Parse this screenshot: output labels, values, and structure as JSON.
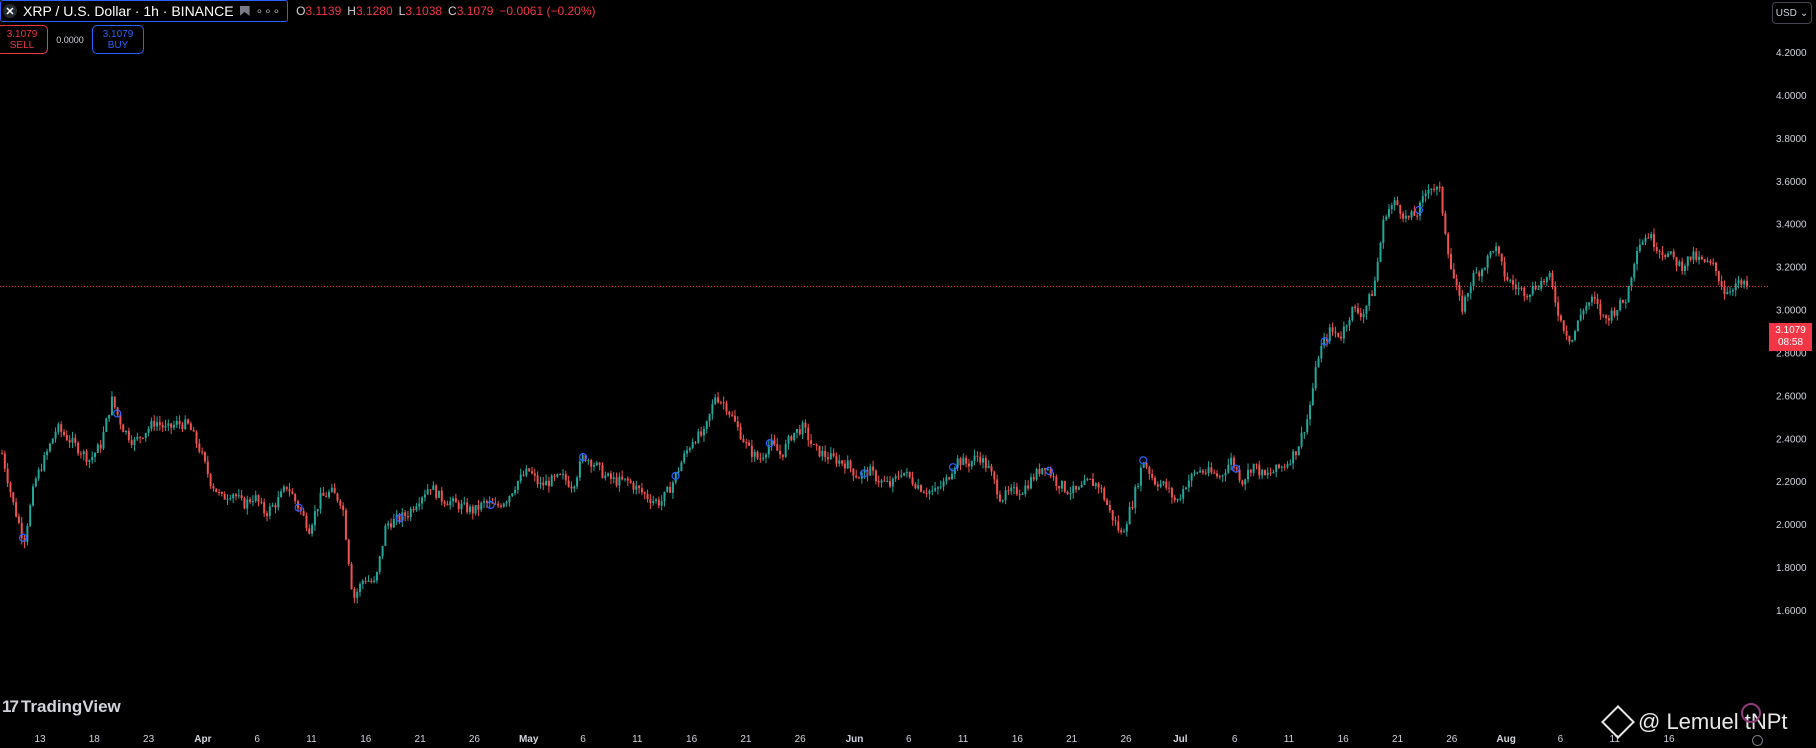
{
  "header": {
    "symbol_title": "XRP / U.S. Dollar · 1h · BINANCE",
    "logo_glyph": "✕",
    "more_glyph": "∘∘∘",
    "ohlc": {
      "o_label": "O",
      "o_value": "3.1139",
      "h_label": "H",
      "h_value": "3.1280",
      "l_label": "L",
      "l_value": "3.1038",
      "c_label": "C",
      "c_value": "3.1079",
      "change": "−0.0061 (−0.20%)"
    }
  },
  "trade": {
    "sell_price": "3.1079",
    "sell_label": "SELL",
    "spread": "0.0000",
    "buy_price": "3.1079",
    "buy_label": "BUY"
  },
  "currency": {
    "label": "USD",
    "chevron": "⌄"
  },
  "price_tag": {
    "price": "3.1079",
    "countdown": "08:58"
  },
  "branding": {
    "tv_mark": "17",
    "tv_text": "TradingView",
    "watermark": "@ Lemuel tNPt"
  },
  "colors": {
    "up": "#26a69a",
    "down": "#ef5350",
    "bg": "#000000",
    "last_price": "#f23645",
    "marker": "#2962ff"
  },
  "chart_data": {
    "type": "line",
    "ylim": [
      1.6,
      4.2
    ],
    "y_ticks": [
      "4.2000",
      "4.0000",
      "3.8000",
      "3.6000",
      "3.4000",
      "3.2000",
      "3.0000",
      "2.8000",
      "2.6000",
      "2.4000",
      "2.2000",
      "2.0000",
      "1.8000",
      "1.6000"
    ],
    "x_ticks": [
      {
        "label": "13",
        "bold": false
      },
      {
        "label": "18",
        "bold": false
      },
      {
        "label": "23",
        "bold": false
      },
      {
        "label": "Apr",
        "bold": true
      },
      {
        "label": "6",
        "bold": false
      },
      {
        "label": "11",
        "bold": false
      },
      {
        "label": "16",
        "bold": false
      },
      {
        "label": "21",
        "bold": false
      },
      {
        "label": "26",
        "bold": false
      },
      {
        "label": "May",
        "bold": true
      },
      {
        "label": "6",
        "bold": false
      },
      {
        "label": "11",
        "bold": false
      },
      {
        "label": "16",
        "bold": false
      },
      {
        "label": "21",
        "bold": false
      },
      {
        "label": "26",
        "bold": false
      },
      {
        "label": "Jun",
        "bold": true
      },
      {
        "label": "6",
        "bold": false
      },
      {
        "label": "11",
        "bold": false
      },
      {
        "label": "16",
        "bold": false
      },
      {
        "label": "21",
        "bold": false
      },
      {
        "label": "26",
        "bold": false
      },
      {
        "label": "Jul",
        "bold": true
      },
      {
        "label": "6",
        "bold": false
      },
      {
        "label": "11",
        "bold": false
      },
      {
        "label": "16",
        "bold": false
      },
      {
        "label": "21",
        "bold": false
      },
      {
        "label": "26",
        "bold": false
      },
      {
        "label": "Aug",
        "bold": true
      },
      {
        "label": "6",
        "bold": false
      },
      {
        "label": "11",
        "bold": false
      },
      {
        "label": "16",
        "bold": false
      }
    ],
    "last_price": 3.1079,
    "series": [
      {
        "values": [
          2.33,
          2.1,
          1.92,
          2.2,
          2.32,
          2.45,
          2.4,
          2.35,
          2.3,
          2.37,
          2.58,
          2.45,
          2.38,
          2.43,
          2.48,
          2.44,
          2.47,
          2.46,
          2.35,
          2.2,
          2.12,
          2.15,
          2.09,
          2.13,
          2.05,
          2.1,
          2.18,
          2.08,
          1.98,
          2.12,
          2.15,
          2.1,
          1.65,
          1.75,
          1.72,
          2.0,
          2.02,
          2.05,
          2.12,
          2.18,
          2.12,
          2.1,
          2.08,
          2.06,
          2.1,
          2.08,
          2.12,
          2.2,
          2.25,
          2.18,
          2.2,
          2.22,
          2.18,
          2.32,
          2.28,
          2.22,
          2.2,
          2.2,
          2.16,
          2.12,
          2.1,
          2.18,
          2.3,
          2.4,
          2.42,
          2.6,
          2.55,
          2.45,
          2.35,
          2.3,
          2.38,
          2.32,
          2.42,
          2.45,
          2.35,
          2.32,
          2.3,
          2.28,
          2.22,
          2.25,
          2.2,
          2.18,
          2.25,
          2.2,
          2.16,
          2.15,
          2.2,
          2.3,
          2.28,
          2.32,
          2.25,
          2.12,
          2.15,
          2.16,
          2.22,
          2.28,
          2.2,
          2.16,
          2.15,
          2.2,
          2.18,
          2.05,
          1.95,
          2.1,
          2.3,
          2.2,
          2.18,
          2.1,
          2.2,
          2.25,
          2.24,
          2.22,
          2.3,
          2.2,
          2.28,
          2.22,
          2.25,
          2.28,
          2.35,
          2.5,
          2.8,
          2.9,
          2.88,
          3.0,
          2.98,
          3.1,
          3.45,
          3.5,
          3.42,
          3.45,
          3.58,
          3.55,
          3.2,
          3.0,
          3.15,
          3.2,
          3.3,
          3.15,
          3.1,
          3.08,
          3.12,
          3.15,
          2.95,
          2.85,
          3.0,
          3.05,
          2.95,
          3.0,
          3.05,
          3.3,
          3.35,
          3.28,
          3.25,
          3.2,
          3.25,
          3.22,
          3.2,
          3.08,
          3.12,
          3.1079
        ]
      }
    ]
  }
}
